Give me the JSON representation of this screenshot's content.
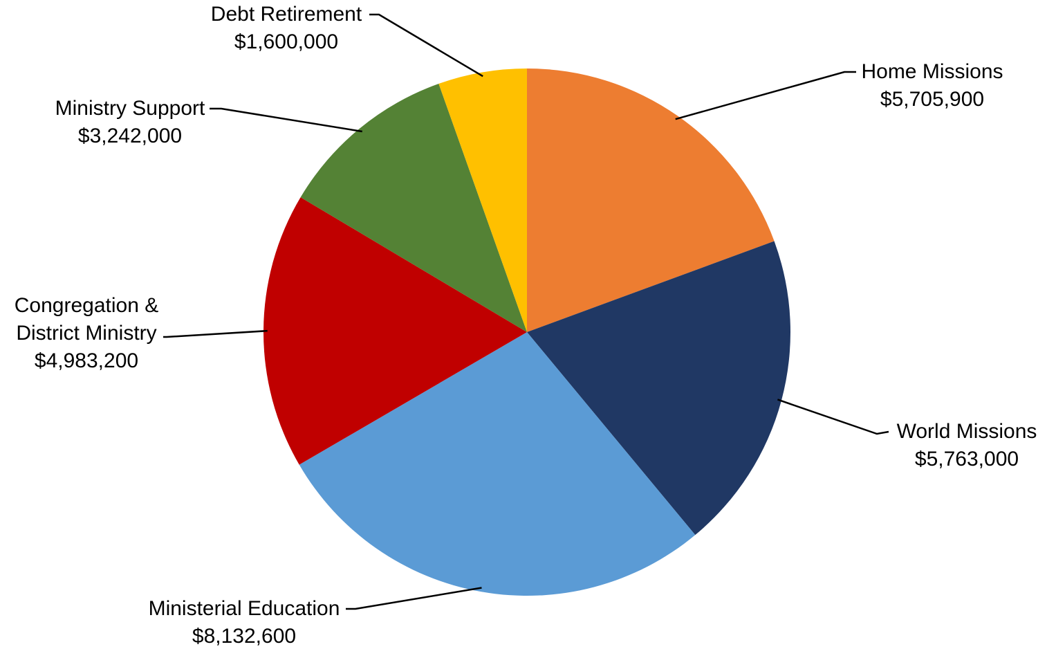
{
  "chart_data": {
    "type": "pie",
    "title": "",
    "slices": [
      {
        "name": "Home Missions",
        "value": 5705900,
        "value_label": "$5,705,900",
        "color": "#ED7D31"
      },
      {
        "name": "World Missions",
        "value": 5763000,
        "value_label": "$5,763,000",
        "color": "#203864"
      },
      {
        "name": "Ministerial Education",
        "value": 8132600,
        "value_label": "$8,132,600",
        "color": "#5B9BD5"
      },
      {
        "name": "Congregation & District Ministry",
        "value": 4983200,
        "value_label": "$4,983,200",
        "color": "#C00000"
      },
      {
        "name": "Ministry Support",
        "value": 3242000,
        "value_label": "$3,242,000",
        "color": "#548235"
      },
      {
        "name": "Debt Retirement",
        "value": 1600000,
        "value_label": "$1,600,000",
        "color": "#FFC000"
      }
    ],
    "label_lines": [
      [
        "Home Missions"
      ],
      [
        "World Missions"
      ],
      [
        "Ministerial Education"
      ],
      [
        "Congregation &",
        "District Ministry"
      ],
      [
        "Ministry Support"
      ],
      [
        "Debt Retirement"
      ]
    ],
    "legend": "none",
    "start_angle": "12 o'clock",
    "direction": "clockwise"
  }
}
